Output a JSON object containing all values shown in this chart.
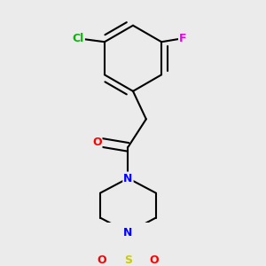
{
  "background_color": "#ebebeb",
  "bond_color": "#000000",
  "bond_width": 1.5,
  "atom_colors": {
    "C": "#000000",
    "N": "#0000ff",
    "O": "#ff0000",
    "S": "#cccc00",
    "Cl": "#00bb00",
    "F": "#ee00ee"
  },
  "font_size": 9,
  "figsize": [
    3.0,
    3.0
  ],
  "dpi": 100
}
